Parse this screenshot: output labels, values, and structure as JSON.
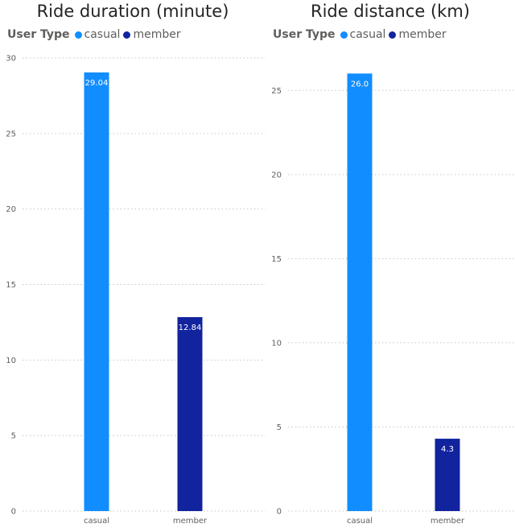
{
  "legend": {
    "title": "User Type",
    "items": [
      {
        "label": "casual",
        "color": "#118dff"
      },
      {
        "label": "member",
        "color": "#12239e"
      }
    ]
  },
  "chart_data": [
    {
      "type": "bar",
      "title": "Ride duration (minute)",
      "categories": [
        "casual",
        "member"
      ],
      "values": [
        29.04,
        12.84
      ],
      "value_labels": [
        "29.04",
        "12.84"
      ],
      "colors": [
        "#118dff",
        "#12239e"
      ],
      "ylim": [
        0,
        30
      ],
      "yticks": [
        0,
        5,
        10,
        15,
        20,
        25,
        30
      ],
      "grid": true,
      "xlabel": "",
      "ylabel": ""
    },
    {
      "type": "bar",
      "title": "Ride distance (km)",
      "categories": [
        "casual",
        "member"
      ],
      "values": [
        26.0,
        4.3
      ],
      "value_labels": [
        "26.0",
        "4.3"
      ],
      "colors": [
        "#118dff",
        "#12239e"
      ],
      "ylim": [
        0,
        27.5
      ],
      "yticks": [
        0,
        5,
        10,
        15,
        20,
        25
      ],
      "grid": true,
      "xlabel": "",
      "ylabel": ""
    }
  ]
}
